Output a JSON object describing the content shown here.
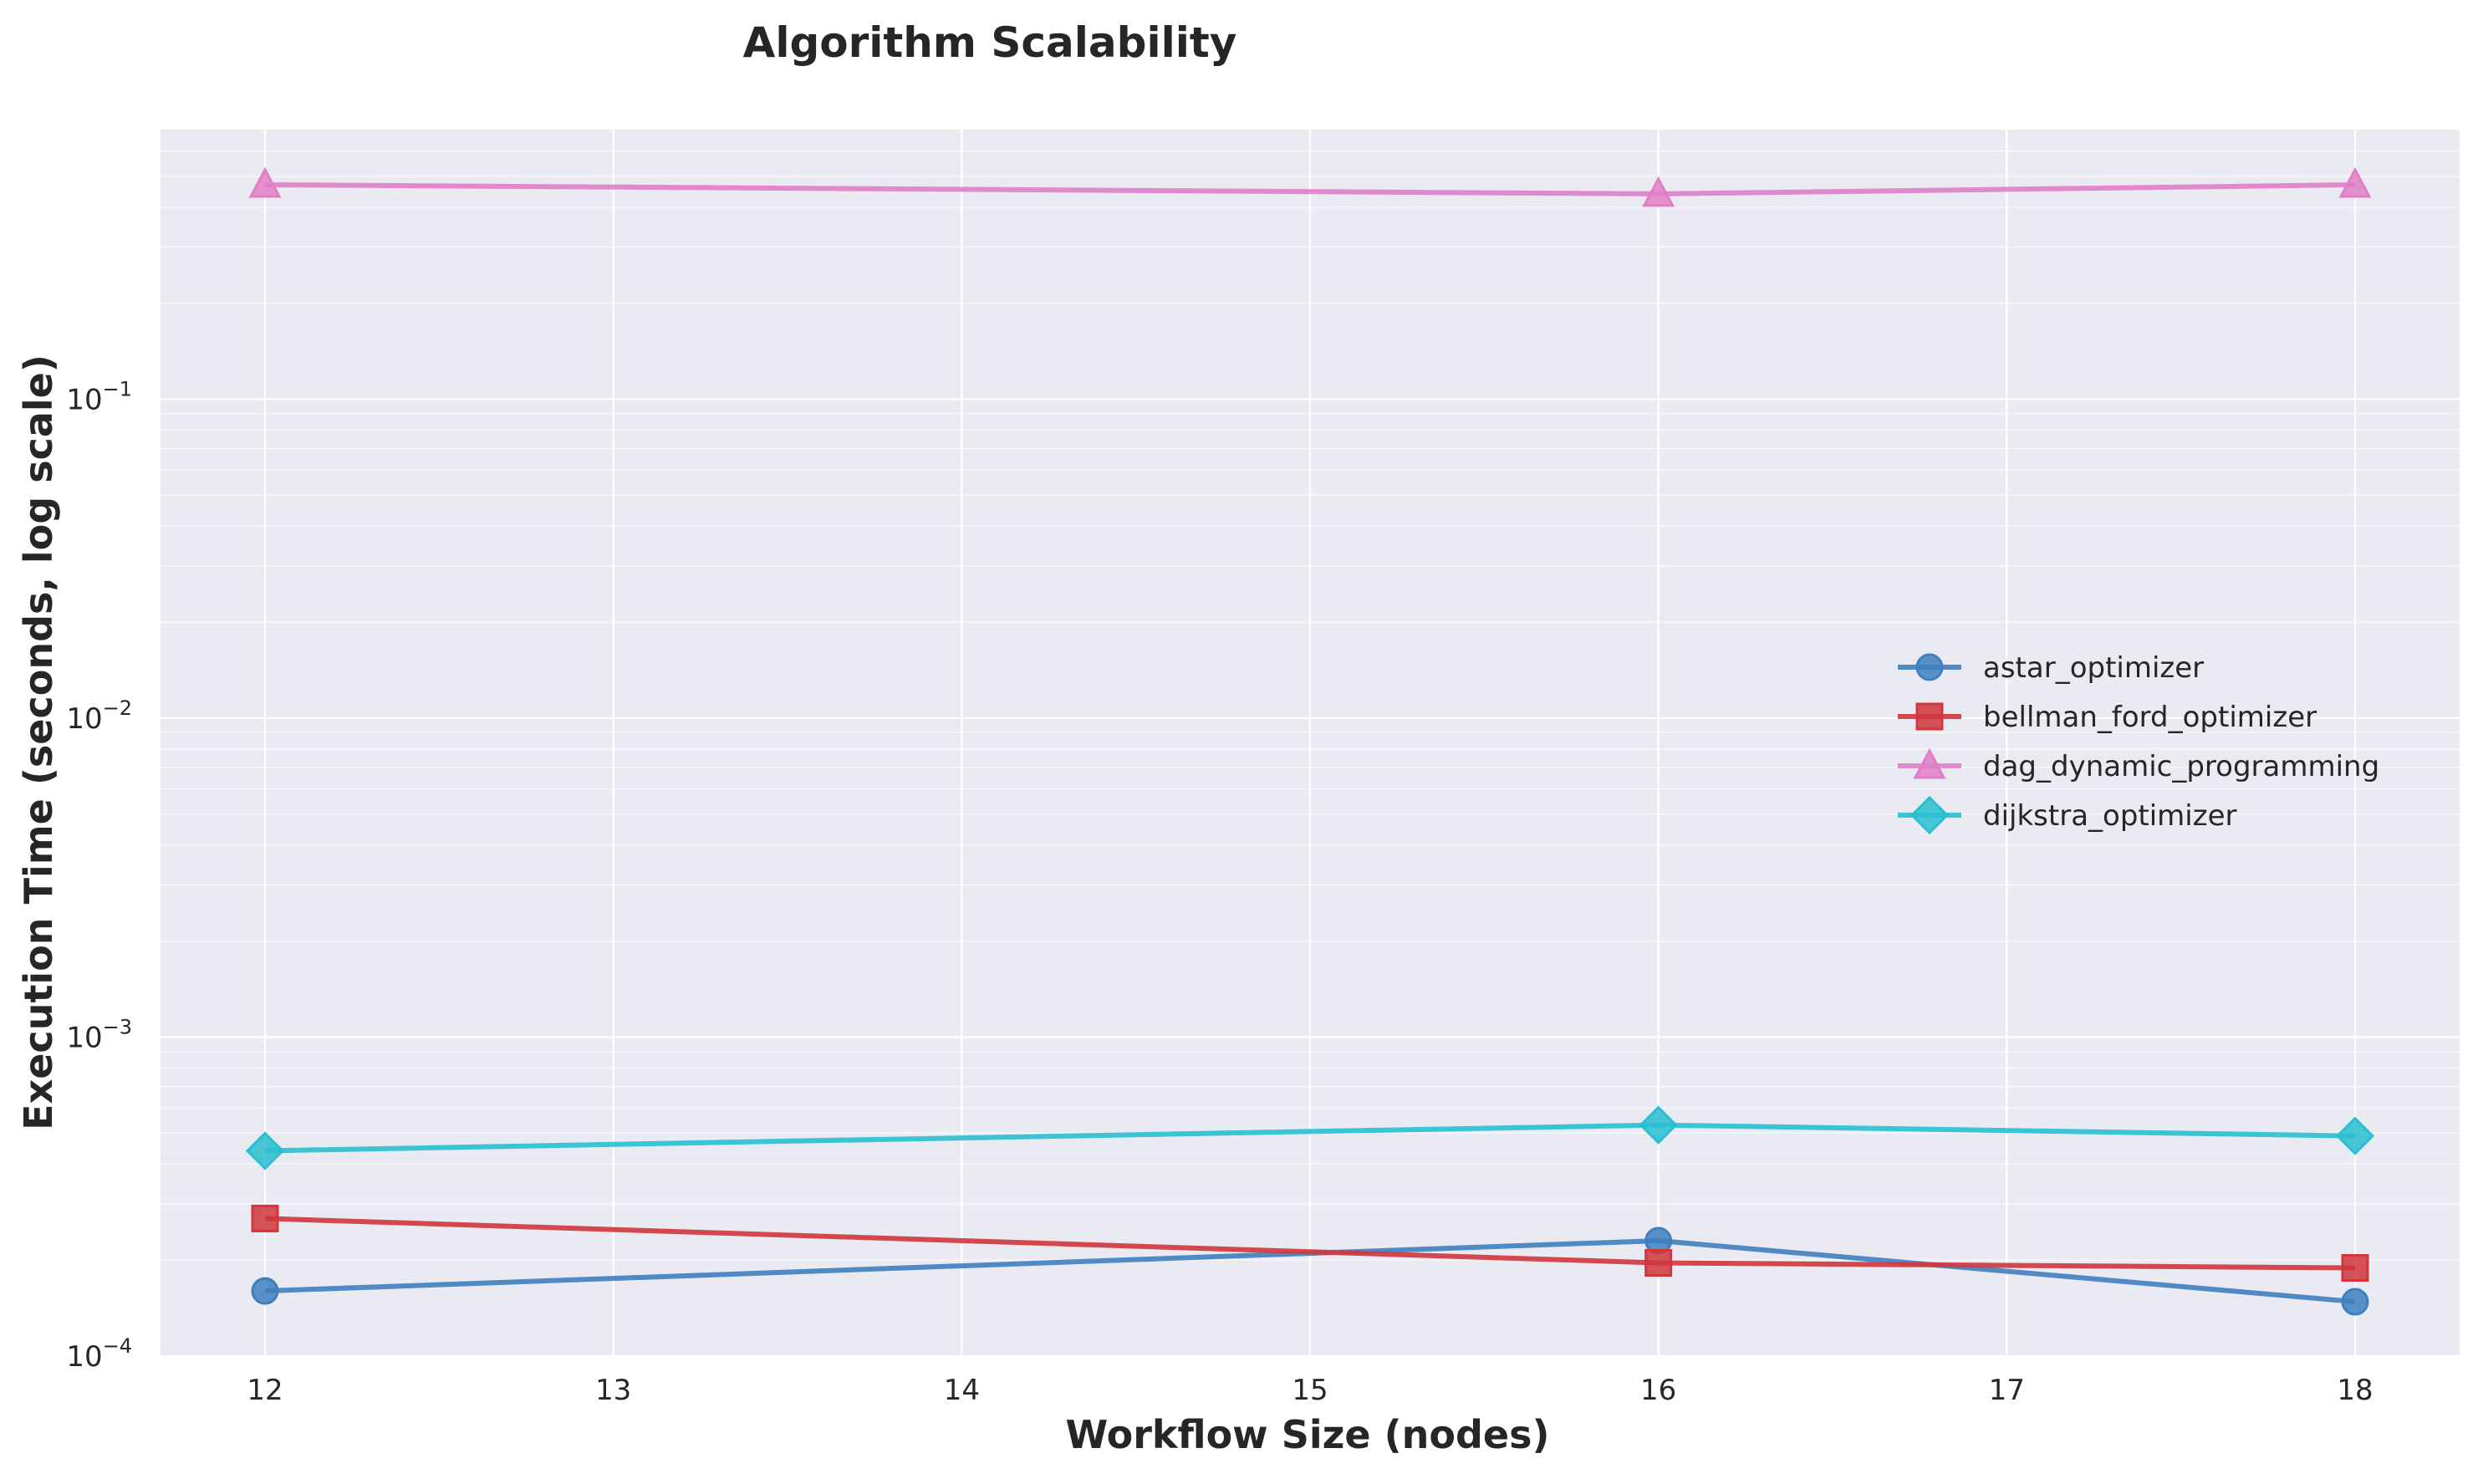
{
  "chart_data": {
    "type": "line",
    "title": "Algorithm Scalability",
    "xlabel": "Workflow Size (nodes)",
    "ylabel": "Execution Time (seconds, log scale)",
    "x": [
      12,
      16,
      18
    ],
    "xlim": [
      11.7,
      18.3
    ],
    "xticks": [
      "12",
      "13",
      "14",
      "15",
      "16",
      "17",
      "18"
    ],
    "ylim": [
      0.0001,
      0.7
    ],
    "yscale": "log",
    "yticks": [
      {
        "base": "10",
        "exp": "−4"
      },
      {
        "base": "10",
        "exp": "−3"
      },
      {
        "base": "10",
        "exp": "−2"
      },
      {
        "base": "10",
        "exp": "−1"
      }
    ],
    "grid": true,
    "legend_position": "center-right",
    "series": [
      {
        "name": "astar_optimizer",
        "values": [
          0.00016,
          0.00023,
          0.000148
        ],
        "color": "#3f7fbf",
        "marker": "circle"
      },
      {
        "name": "bellman_ford_optimizer",
        "values": [
          0.00027,
          0.000196,
          0.000189
        ],
        "color": "#d0363c",
        "marker": "square"
      },
      {
        "name": "dag_dynamic_programming",
        "values": [
          0.47,
          0.44,
          0.47
        ],
        "color": "#e07fc6",
        "marker": "triangle"
      },
      {
        "name": "dijkstra_optimizer",
        "values": [
          0.00044,
          0.00053,
          0.00049
        ],
        "color": "#29bfd0",
        "marker": "diamond"
      }
    ]
  }
}
